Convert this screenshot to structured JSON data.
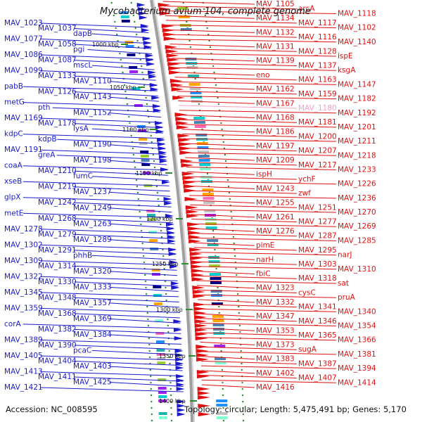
{
  "title": "Mycobacterium avium 104, complete genome",
  "accession": "Accession: NC_008595",
  "topology": "Topology: circular; Length: 5,475,491 bp; Genes: 5,170",
  "kbp_ticks": [
    "1000 kbp",
    "1050 kbp",
    "1100 kbp",
    "1150 kbp",
    "1200 kbp",
    "1250 kbp",
    "1300 kbp",
    "1350 kbp",
    "1400 kbp"
  ],
  "colors": {
    "left": "#1a1acc",
    "right": "#e01010",
    "pink": "#f4a0c8",
    "backbone": "#9a9a9a",
    "dots": "#2e8b2e"
  },
  "left_labels": [
    "MAV_1023",
    "MAV_1037",
    "dapB",
    "MAV_1077",
    "MAV_1058",
    "pgi",
    "MAV_1086",
    "MAV_1087",
    "mscL",
    "MAV_1099",
    "MAV_1133",
    "MAV_1110",
    "pabB",
    "MAV_1126",
    "MAV_1143",
    "metG",
    "pth",
    "MAV_1152",
    "MAV_1169",
    "MAV_1178",
    "lysA",
    "kdpC",
    "kdpB",
    "MAV_1190",
    "MAV_1191",
    "greA",
    "MAV_1198",
    "coaA",
    "MAV_1210",
    "fumC",
    "xseB",
    "MAV_1219",
    "MAV_1237",
    "glpX",
    "MAV_1242",
    "MAV_1249",
    "metE",
    "MAV_1268",
    "MAV_1263",
    "MAV_1278",
    "MAV_1279",
    "MAV_1289",
    "MAV_1302",
    "MAV_1291",
    "phhB",
    "MAV_1309",
    "MAV_1314",
    "MAV_1320",
    "MAV_1322",
    "MAV_1330",
    "MAV_1333",
    "MAV_1345",
    "MAV_1348",
    "MAV_1357",
    "MAV_1359",
    "MAV_1368",
    "MAV_1369",
    "corA",
    "MAV_1382",
    "MAV_1384",
    "MAV_1389",
    "MAV_1390",
    "pcaC",
    "MAV_1405",
    "MAV_1404",
    "MAV_1403",
    "MAV_1413",
    "MAV_1411",
    "MAV_1425",
    "MAV_1421"
  ],
  "right_labels": [
    "MAV_1105",
    "arcA",
    "MAV_1118",
    "MAV_1134",
    "MAV_1117",
    "MAV_1102",
    "MAV_1132",
    "MAV_1116",
    "MAV_1140",
    "MAV_1131",
    "MAV_1128",
    "ispE",
    "MAV_1139",
    "MAV_1137",
    "ksgA",
    "eno",
    "MAV_1163",
    "MAV_1147",
    "MAV_1162",
    "MAV_1159",
    "MAV_1182",
    "MAV_1167",
    "MAV_1180",
    "MAV_1192",
    "MAV_1168",
    "MAV_1181",
    "MAV_1201",
    "MAV_1186",
    "MAV_1200",
    "MAV_1211",
    "MAV_1197",
    "MAV_1207",
    "MAV_1218",
    "MAV_1209",
    "MAV_1217",
    "MAV_1233",
    "ispH",
    "ychF",
    "MAV_1226",
    "MAV_1243",
    "zwf",
    "MAV_1236",
    "MAV_1255",
    "MAV_1251",
    "MAV_1270",
    "MAV_1261",
    "MAV_1277",
    "MAV_1269",
    "MAV_1276",
    "MAV_1287",
    "MAV_1285",
    "pimE",
    "MAV_1295",
    "narJ",
    "narH",
    "MAV_1303",
    "MAV_1310",
    "fbiC",
    "MAV_1318",
    "sat",
    "MAV_1323",
    "cysC",
    "pruA",
    "MAV_1332",
    "MAV_1341",
    "MAV_1340",
    "MAV_1347",
    "MAV_1346",
    "MAV_1354",
    "MAV_1353",
    "MAV_1365",
    "MAV_1366",
    "MAV_1373",
    "sugA",
    "MAV_1381",
    "MAV_1383",
    "MAV_1387",
    "MAV_1394",
    "MAV_1402",
    "MAV_1407",
    "MAV_1414",
    "MAV_1416"
  ]
}
